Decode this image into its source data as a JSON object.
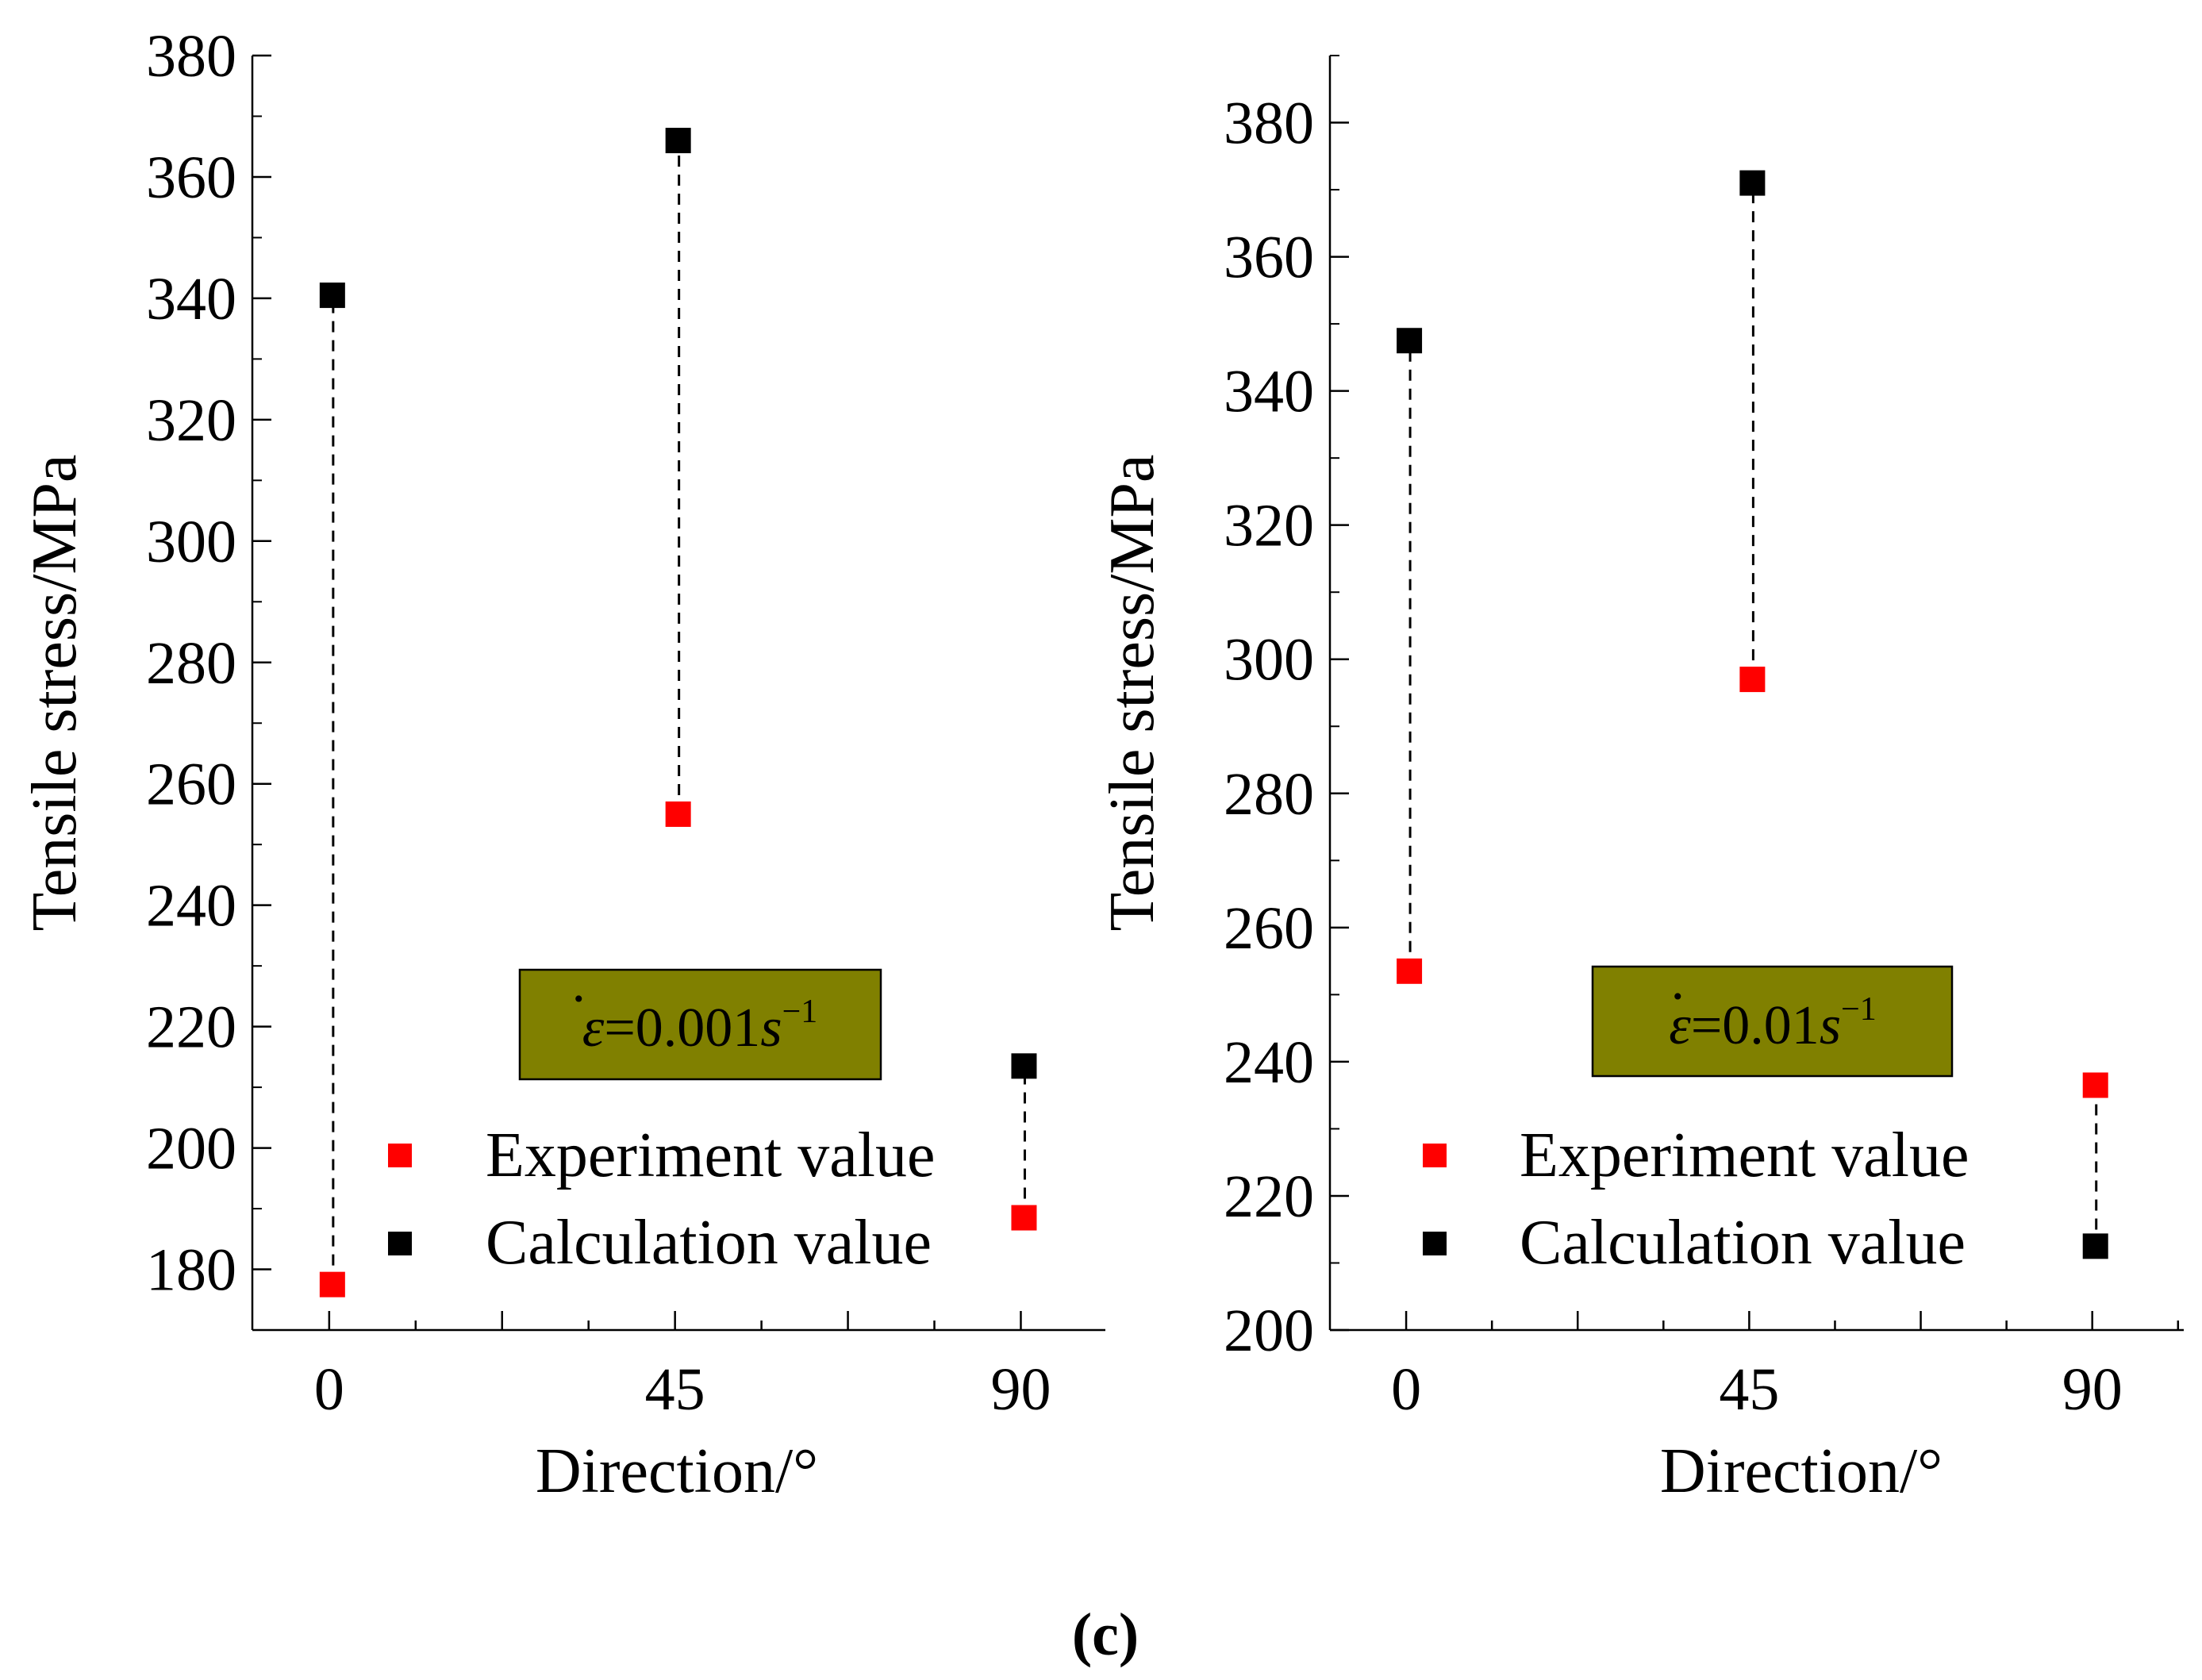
{
  "figure": {
    "caption": "(c)",
    "colors": {
      "experiment": "#ff0000",
      "calculation": "#000000",
      "annotation_box": "#808000",
      "axis": "#000000"
    }
  },
  "chart_data": [
    {
      "type": "scatter",
      "xlabel": "Direction/°",
      "ylabel": "Tensile stress/MPa",
      "x": [
        0,
        45,
        90
      ],
      "xticks": [
        "0",
        "45",
        "90"
      ],
      "xlim": [
        -10,
        101
      ],
      "ylim": [
        170,
        380
      ],
      "yticks": [
        180,
        200,
        220,
        240,
        260,
        280,
        300,
        320,
        340,
        360,
        380
      ],
      "series": [
        {
          "name": "Experiment value",
          "color": "#ff0000",
          "values": [
            177.5,
            255,
            188.5
          ]
        },
        {
          "name": "Calculation value",
          "color": "#000000",
          "values": [
            340.5,
            366,
            213.5
          ]
        }
      ],
      "annotation": {
        "symbol": "ε",
        "text": "=0.001",
        "unit": "s",
        "exponent": "−1"
      },
      "legend": [
        "Experiment value",
        "Calculation value"
      ],
      "legend_position": "bottom-right"
    },
    {
      "type": "scatter",
      "xlabel": "Direction/°",
      "ylabel": "Tensile stress/MPa",
      "x": [
        0,
        45,
        90
      ],
      "xticks": [
        "0",
        "45",
        "90"
      ],
      "xlim": [
        -10,
        102
      ],
      "ylim": [
        200,
        390
      ],
      "yticks": [
        200,
        220,
        240,
        260,
        280,
        300,
        320,
        340,
        360,
        380
      ],
      "series": [
        {
          "name": "Experiment value",
          "color": "#ff0000",
          "values": [
            253.5,
            297,
            236.5
          ]
        },
        {
          "name": "Calculation value",
          "color": "#000000",
          "values": [
            347.5,
            371,
            212.5
          ]
        }
      ],
      "annotation": {
        "symbol": "ε",
        "text": "=0.01",
        "unit": "s",
        "exponent": "−1"
      },
      "legend": [
        "Experiment value",
        "Calculation value"
      ],
      "legend_position": "bottom-right"
    }
  ]
}
